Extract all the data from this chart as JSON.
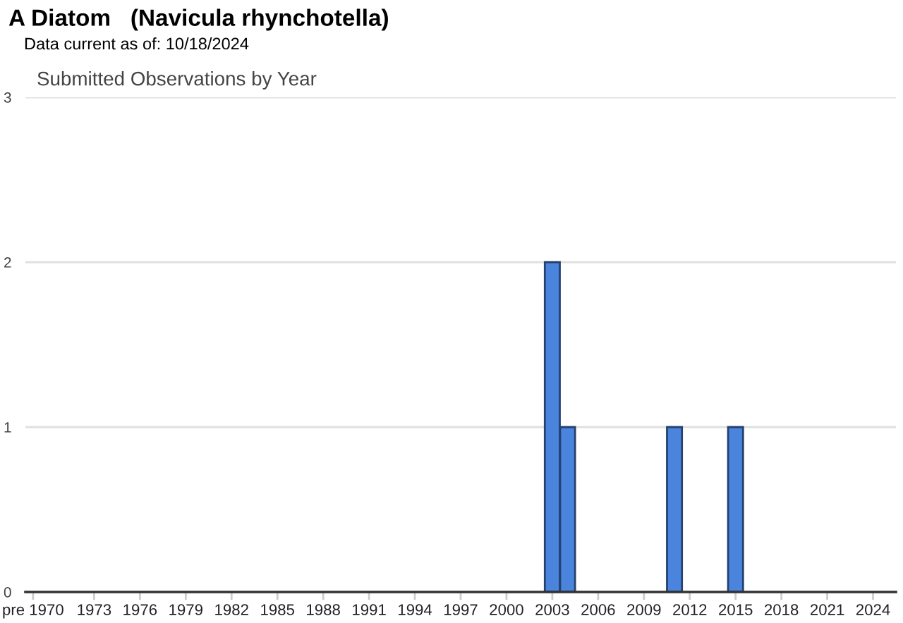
{
  "chart_data": {
    "type": "bar",
    "title": "A Diatom   (Navicula rhynchotella)",
    "subtitle": "Data current as of: 10/18/2024",
    "annotations": [
      "Submitted Observations by Year"
    ],
    "categories": [
      "pre 1970",
      null,
      null,
      null,
      "1973",
      null,
      null,
      "1976",
      null,
      null,
      "1979",
      null,
      null,
      "1982",
      null,
      null,
      "1985",
      null,
      null,
      "1988",
      null,
      null,
      "1991",
      null,
      null,
      "1994",
      null,
      null,
      "1997",
      null,
      null,
      "2000",
      null,
      null,
      "2003",
      null,
      null,
      "2006",
      null,
      null,
      "2009",
      null,
      null,
      "2012",
      null,
      null,
      "2015",
      null,
      null,
      "2018",
      null,
      null,
      "2021",
      null,
      null,
      "2024",
      null
    ],
    "values": [
      0,
      0,
      0,
      0,
      0,
      0,
      0,
      0,
      0,
      0,
      0,
      0,
      0,
      0,
      0,
      0,
      0,
      0,
      0,
      0,
      0,
      0,
      0,
      0,
      0,
      0,
      0,
      0,
      0,
      0,
      0,
      0,
      0,
      0,
      2,
      1,
      0,
      0,
      0,
      0,
      0,
      0,
      1,
      0,
      0,
      0,
      1,
      0,
      0,
      0,
      0,
      0,
      0,
      0,
      0,
      0,
      0
    ],
    "color": "#4a84dd",
    "ylim": [
      0,
      3
    ],
    "yticks": [
      0,
      1,
      2,
      3
    ],
    "grid": "y"
  }
}
